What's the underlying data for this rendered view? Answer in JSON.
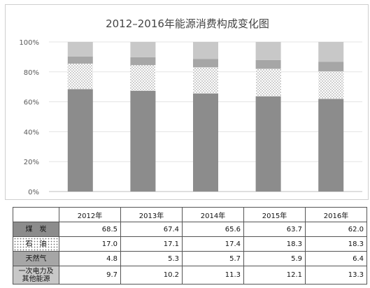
{
  "chart_data": {
    "type": "bar",
    "stacked": true,
    "normalized": true,
    "title": "2012–2016年能源消费构成变化图",
    "categories": [
      "2012年",
      "2013年",
      "2014年",
      "2015年",
      "2016年"
    ],
    "series": [
      {
        "name": "煤　炭",
        "values": [
          68.5,
          67.4,
          65.6,
          63.7,
          62.0
        ],
        "color": "#8c8c8c",
        "pattern": "solid"
      },
      {
        "name": "石　油",
        "values": [
          17.0,
          17.1,
          17.4,
          18.3,
          18.3
        ],
        "color": "#ffffff",
        "pattern": "dots"
      },
      {
        "name": "天然气",
        "values": [
          4.8,
          5.3,
          5.7,
          5.9,
          6.4
        ],
        "color": "#a6a6a6",
        "pattern": "solid"
      },
      {
        "name": "一次电力及其他能源",
        "values": [
          9.7,
          10.2,
          11.3,
          12.1,
          13.3
        ],
        "color": "#c8c8c8",
        "pattern": "solid"
      }
    ],
    "ylim": [
      0,
      100
    ],
    "yticks": [
      "0%",
      "20%",
      "40%",
      "60%",
      "80%",
      "100%"
    ],
    "grid": true,
    "legend": "data-table-below"
  },
  "table": {
    "rows": [
      {
        "label": "煤　炭",
        "values": [
          "68.5",
          "67.4",
          "65.6",
          "63.7",
          "62.0"
        ]
      },
      {
        "label": "石　油",
        "values": [
          "17.0",
          "17.1",
          "17.4",
          "18.3",
          "18.3"
        ]
      },
      {
        "label": "天然气",
        "values": [
          "4.8",
          "5.3",
          "5.7",
          "5.9",
          "6.4"
        ]
      },
      {
        "label": "一次电力及其他能源",
        "values": [
          "9.7",
          "10.2",
          "11.3",
          "12.1",
          "13.3"
        ]
      }
    ]
  }
}
